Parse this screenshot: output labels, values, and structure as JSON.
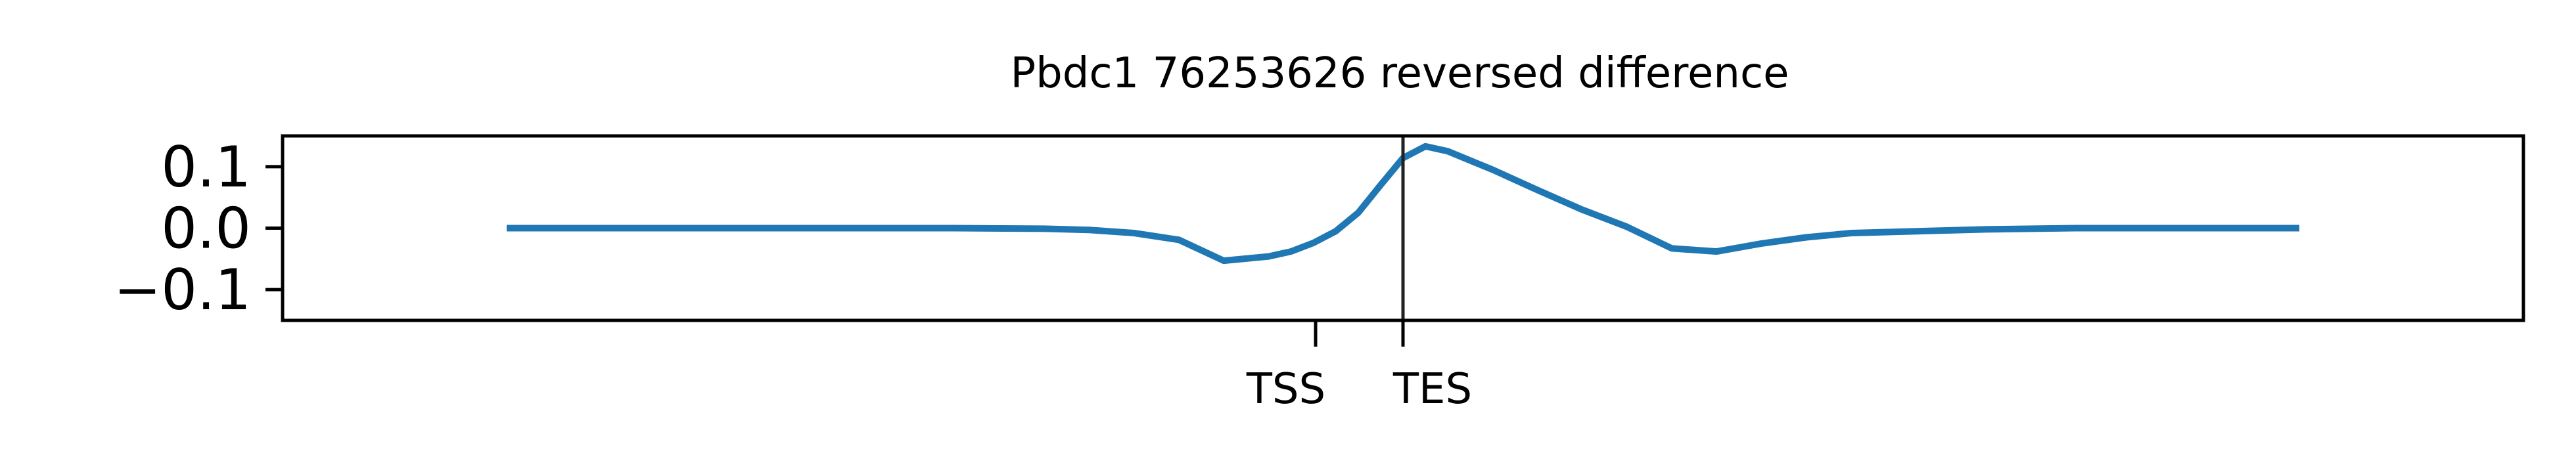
{
  "chart_data": {
    "type": "line",
    "title": "Pbdc1 76253626 reversed difference",
    "xlabel": "",
    "ylabel": "",
    "ylim": [
      -0.15,
      0.15
    ],
    "yticks": [
      {
        "value": 0.1,
        "label": "0.1"
      },
      {
        "value": 0.0,
        "label": "0.0"
      },
      {
        "value": -0.1,
        "label": "−0.1"
      }
    ],
    "xlim": [
      0,
      1000
    ],
    "xticks": [
      {
        "value": 461,
        "label": "TSS"
      },
      {
        "value": 500,
        "label": "TES"
      }
    ],
    "vertical_lines": [
      500
    ],
    "grid": false,
    "legend": "none",
    "colors": {
      "series": "#1f77b4",
      "axes": "#000000",
      "vline": "#222222"
    },
    "series": [
      {
        "x": [
          100,
          160,
          200,
          260,
          300,
          340,
          360,
          380,
          400,
          420,
          440,
          450,
          460,
          470,
          480,
          490,
          500,
          510,
          520,
          530,
          540,
          560,
          580,
          600,
          620,
          640,
          660,
          680,
          700,
          760,
          800,
          860,
          900
        ],
        "y": [
          0.0,
          0.0,
          0.0,
          0.0,
          0.0,
          -0.001,
          -0.003,
          -0.008,
          -0.019,
          -0.053,
          -0.046,
          -0.038,
          -0.024,
          -0.005,
          0.025,
          0.07,
          0.114,
          0.133,
          0.125,
          0.11,
          0.095,
          0.062,
          0.03,
          0.002,
          -0.033,
          -0.038,
          -0.025,
          -0.015,
          -0.008,
          -0.002,
          0.0,
          0.0,
          0.0
        ]
      }
    ]
  }
}
